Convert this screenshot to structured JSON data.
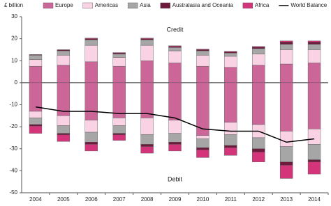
{
  "chart_data": {
    "type": "bar",
    "stacked": true,
    "y_label": "£ billion",
    "annotations": [
      {
        "text": "Credit",
        "y": 24
      },
      {
        "text": "Debit",
        "y": -44
      }
    ],
    "categories": [
      "2004",
      "2005",
      "2006",
      "2007",
      "2008",
      "2009",
      "2010",
      "2011",
      "2012",
      "2013",
      "2014"
    ],
    "series": [
      {
        "name": "Europe",
        "color": "#cc6699",
        "credit": [
          7.5,
          8,
          9.5,
          7.5,
          10,
          9,
          7.5,
          7,
          8,
          8.5,
          9
        ],
        "debit": [
          -13,
          -15,
          -17,
          -16,
          -16,
          -17,
          -24,
          -18,
          -19,
          -22,
          -21
        ]
      },
      {
        "name": "Americas",
        "color": "#f9d2e4",
        "credit": [
          3,
          4.5,
          7.5,
          4,
          7,
          5.5,
          5,
          5,
          5,
          6.5,
          6
        ],
        "debit": [
          -3,
          -4.5,
          -5.5,
          -3.5,
          -7.5,
          -6,
          -1.5,
          -5.5,
          -6,
          -7,
          -7
        ]
      },
      {
        "name": "Asia",
        "color": "#a6a6a6",
        "credit": [
          2,
          2,
          2.5,
          1.5,
          2.5,
          1.5,
          2,
          1.5,
          2.5,
          2.5,
          2.5
        ],
        "debit": [
          -3,
          -3.5,
          -4.5,
          -3.5,
          -4.5,
          -4,
          -4,
          -5,
          -5,
          -7,
          -7
        ]
      },
      {
        "name": "Australasia and Oceania",
        "color": "#6e1a3c",
        "credit": [
          0.3,
          0.5,
          0.5,
          0.5,
          0.5,
          0.5,
          0.5,
          0.5,
          0.7,
          1,
          1
        ],
        "debit": [
          -0.7,
          -0.7,
          -1,
          -0.7,
          -1,
          -1,
          -1,
          -1,
          -1.5,
          -1.5,
          -1
        ]
      },
      {
        "name": "Africa",
        "color": "#d4357a",
        "credit": [
          0,
          0,
          0.3,
          0.2,
          0.3,
          0.3,
          0.3,
          0.3,
          0.3,
          0.5,
          0.5
        ],
        "debit": [
          -3.3,
          -3,
          -3,
          -2.5,
          -3,
          -3,
          -3.5,
          -3.5,
          -4.5,
          -6,
          -5.5
        ]
      },
      {
        "name": "World Balance",
        "type": "line",
        "color": "#000000",
        "values": [
          -11,
          -13,
          -13,
          -14,
          -14,
          -16,
          -21,
          -22,
          -22,
          -27,
          -25.5
        ]
      }
    ],
    "ylim": [
      -50,
      30
    ],
    "yticks": [
      -50,
      -40,
      -30,
      -20,
      -10,
      0,
      10,
      20,
      30
    ],
    "grid": false
  }
}
